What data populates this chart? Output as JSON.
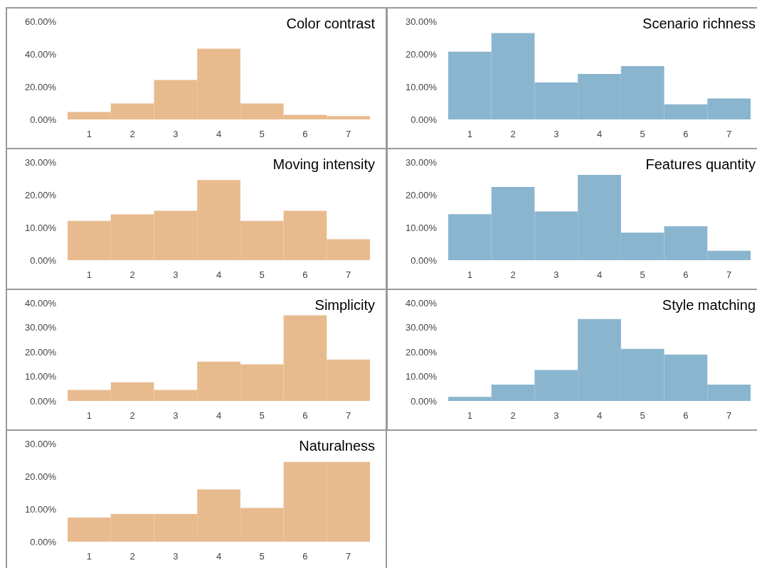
{
  "chart_data": [
    {
      "type": "bar",
      "title": "Color contrast",
      "categories": [
        "1",
        "2",
        "3",
        "4",
        "5",
        "6",
        "7"
      ],
      "values": [
        4.6,
        9.8,
        24.1,
        43.3,
        9.8,
        2.8,
        2.1
      ],
      "color": "#e8bb8f",
      "ylim": [
        0,
        60
      ],
      "yticks": [
        {
          "value": 0,
          "label": "0.00%"
        },
        {
          "value": 20,
          "label": "20.00%"
        },
        {
          "value": 40,
          "label": "40.00%"
        },
        {
          "value": 60,
          "label": "60.00%"
        }
      ]
    },
    {
      "type": "bar",
      "title": "Scenario richness",
      "categories": [
        "1",
        "2",
        "3",
        "4",
        "5",
        "6",
        "7"
      ],
      "values": [
        20.7,
        26.4,
        11.3,
        13.9,
        16.3,
        4.6,
        6.4
      ],
      "color": "#8ab5cf",
      "ylim": [
        0,
        30
      ],
      "yticks": [
        {
          "value": 0,
          "label": "0.00%"
        },
        {
          "value": 10,
          "label": "10.00%"
        },
        {
          "value": 20,
          "label": "20.00%"
        },
        {
          "value": 30,
          "label": "30.00%"
        }
      ]
    },
    {
      "type": "bar",
      "title": "Moving intensity",
      "categories": [
        "1",
        "2",
        "3",
        "4",
        "5",
        "6",
        "7"
      ],
      "values": [
        12.0,
        14.0,
        15.1,
        24.5,
        12.0,
        15.1,
        6.4
      ],
      "color": "#e8bb8f",
      "ylim": [
        0,
        30
      ],
      "yticks": [
        {
          "value": 0,
          "label": "0.00%"
        },
        {
          "value": 10,
          "label": "10.00%"
        },
        {
          "value": 20,
          "label": "20.00%"
        },
        {
          "value": 30,
          "label": "30.00%"
        }
      ]
    },
    {
      "type": "bar",
      "title": "Features quantity",
      "categories": [
        "1",
        "2",
        "3",
        "4",
        "5",
        "6",
        "7"
      ],
      "values": [
        14.1,
        22.4,
        14.9,
        26.1,
        8.4,
        10.4,
        2.9
      ],
      "color": "#8ab5cf",
      "ylim": [
        0,
        30
      ],
      "yticks": [
        {
          "value": 0,
          "label": "0.00%"
        },
        {
          "value": 10,
          "label": "10.00%"
        },
        {
          "value": 20,
          "label": "20.00%"
        },
        {
          "value": 30,
          "label": "30.00%"
        }
      ]
    },
    {
      "type": "bar",
      "title": "Simplicity",
      "categories": [
        "1",
        "2",
        "3",
        "4",
        "5",
        "6",
        "7"
      ],
      "values": [
        4.5,
        7.6,
        4.5,
        16.0,
        14.9,
        34.9,
        16.9
      ],
      "color": "#e8bb8f",
      "ylim": [
        0,
        40
      ],
      "yticks": [
        {
          "value": 0,
          "label": "0.00%"
        },
        {
          "value": 10,
          "label": "10.00%"
        },
        {
          "value": 20,
          "label": "20.00%"
        },
        {
          "value": 30,
          "label": "30.00%"
        },
        {
          "value": 40,
          "label": "40.00%"
        }
      ]
    },
    {
      "type": "bar",
      "title": "Style matching",
      "categories": [
        "1",
        "2",
        "3",
        "4",
        "5",
        "6",
        "7"
      ],
      "values": [
        1.7,
        6.7,
        12.6,
        33.4,
        21.2,
        18.9,
        6.7
      ],
      "color": "#8ab5cf",
      "ylim": [
        0,
        40
      ],
      "yticks": [
        {
          "value": 0,
          "label": "0.00%"
        },
        {
          "value": 10,
          "label": "10.00%"
        },
        {
          "value": 20,
          "label": "20.00%"
        },
        {
          "value": 30,
          "label": "30.00%"
        },
        {
          "value": 40,
          "label": "40.00%"
        }
      ]
    },
    {
      "type": "bar",
      "title": "Naturalness",
      "categories": [
        "1",
        "2",
        "3",
        "4",
        "5",
        "6",
        "7"
      ],
      "values": [
        7.4,
        8.5,
        8.5,
        16.0,
        10.3,
        24.4,
        24.4
      ],
      "color": "#e8bb8f",
      "ylim": [
        0,
        30
      ],
      "yticks": [
        {
          "value": 0,
          "label": "0.00%"
        },
        {
          "value": 10,
          "label": "10.00%"
        },
        {
          "value": 20,
          "label": "20.00%"
        },
        {
          "value": 30,
          "label": "30.00%"
        }
      ]
    }
  ]
}
